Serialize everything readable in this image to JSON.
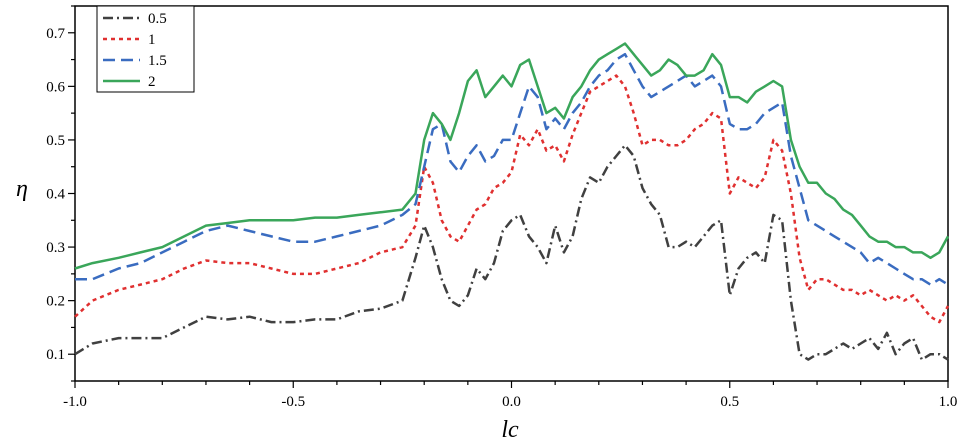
{
  "chart_data": {
    "type": "line",
    "xlabel": "lc",
    "ylabel": "η",
    "xlim": [
      -1.0,
      1.0
    ],
    "ylim": [
      0.05,
      0.75
    ],
    "x_ticks": [
      -1.0,
      -0.5,
      0.0,
      0.5,
      1.0
    ],
    "x_tick_labels": [
      "-1.0",
      "-0.5",
      "0.0",
      "0.5",
      "1.0"
    ],
    "y_ticks": [
      0.1,
      0.2,
      0.3,
      0.4,
      0.5,
      0.6,
      0.7
    ],
    "y_tick_labels": [
      "0.1",
      "0.2",
      "0.3",
      "0.4",
      "0.5",
      "0.6",
      "0.7"
    ],
    "grid": false,
    "legend_position": "top-left",
    "series": [
      {
        "name": "0.5",
        "color": "#404040",
        "dash": "dash-dot",
        "x": [
          -1.0,
          -0.96,
          -0.9,
          -0.85,
          -0.8,
          -0.75,
          -0.7,
          -0.65,
          -0.6,
          -0.55,
          -0.5,
          -0.45,
          -0.4,
          -0.35,
          -0.3,
          -0.25,
          -0.22,
          -0.2,
          -0.18,
          -0.16,
          -0.14,
          -0.12,
          -0.1,
          -0.08,
          -0.06,
          -0.04,
          -0.02,
          0.0,
          0.02,
          0.04,
          0.06,
          0.08,
          0.1,
          0.12,
          0.14,
          0.16,
          0.18,
          0.2,
          0.22,
          0.24,
          0.26,
          0.28,
          0.3,
          0.32,
          0.34,
          0.36,
          0.38,
          0.4,
          0.42,
          0.44,
          0.46,
          0.48,
          0.5,
          0.52,
          0.54,
          0.56,
          0.58,
          0.6,
          0.62,
          0.64,
          0.66,
          0.68,
          0.7,
          0.72,
          0.74,
          0.76,
          0.78,
          0.8,
          0.82,
          0.84,
          0.86,
          0.88,
          0.9,
          0.92,
          0.94,
          0.96,
          0.98,
          1.0
        ],
        "values": [
          0.1,
          0.12,
          0.13,
          0.13,
          0.13,
          0.15,
          0.17,
          0.165,
          0.17,
          0.16,
          0.16,
          0.165,
          0.165,
          0.18,
          0.185,
          0.2,
          0.28,
          0.34,
          0.3,
          0.24,
          0.2,
          0.19,
          0.21,
          0.26,
          0.24,
          0.27,
          0.33,
          0.35,
          0.36,
          0.32,
          0.3,
          0.27,
          0.34,
          0.29,
          0.32,
          0.39,
          0.43,
          0.42,
          0.45,
          0.47,
          0.49,
          0.47,
          0.41,
          0.38,
          0.36,
          0.3,
          0.3,
          0.31,
          0.3,
          0.32,
          0.34,
          0.35,
          0.21,
          0.26,
          0.28,
          0.29,
          0.27,
          0.36,
          0.35,
          0.2,
          0.1,
          0.09,
          0.1,
          0.1,
          0.11,
          0.12,
          0.11,
          0.12,
          0.13,
          0.11,
          0.14,
          0.1,
          0.12,
          0.13,
          0.09,
          0.1,
          0.1,
          0.09
        ]
      },
      {
        "name": "1",
        "color": "#e03030",
        "dash": "dotted",
        "x": [
          -1.0,
          -0.96,
          -0.9,
          -0.85,
          -0.8,
          -0.75,
          -0.7,
          -0.65,
          -0.6,
          -0.55,
          -0.5,
          -0.45,
          -0.4,
          -0.35,
          -0.3,
          -0.25,
          -0.22,
          -0.2,
          -0.18,
          -0.16,
          -0.14,
          -0.12,
          -0.1,
          -0.08,
          -0.06,
          -0.04,
          -0.02,
          0.0,
          0.02,
          0.04,
          0.06,
          0.08,
          0.1,
          0.12,
          0.14,
          0.16,
          0.18,
          0.2,
          0.22,
          0.24,
          0.26,
          0.28,
          0.3,
          0.32,
          0.34,
          0.36,
          0.38,
          0.4,
          0.42,
          0.44,
          0.46,
          0.48,
          0.5,
          0.52,
          0.54,
          0.56,
          0.58,
          0.6,
          0.62,
          0.64,
          0.66,
          0.68,
          0.7,
          0.72,
          0.74,
          0.76,
          0.78,
          0.8,
          0.82,
          0.84,
          0.86,
          0.88,
          0.9,
          0.92,
          0.94,
          0.96,
          0.98,
          1.0
        ],
        "values": [
          0.17,
          0.2,
          0.22,
          0.23,
          0.24,
          0.26,
          0.275,
          0.27,
          0.27,
          0.26,
          0.25,
          0.25,
          0.26,
          0.27,
          0.29,
          0.3,
          0.34,
          0.45,
          0.42,
          0.35,
          0.32,
          0.31,
          0.34,
          0.37,
          0.38,
          0.41,
          0.42,
          0.44,
          0.51,
          0.49,
          0.52,
          0.48,
          0.49,
          0.46,
          0.51,
          0.55,
          0.59,
          0.6,
          0.61,
          0.62,
          0.6,
          0.55,
          0.49,
          0.5,
          0.5,
          0.49,
          0.49,
          0.5,
          0.52,
          0.53,
          0.55,
          0.54,
          0.4,
          0.43,
          0.42,
          0.41,
          0.43,
          0.5,
          0.48,
          0.4,
          0.28,
          0.22,
          0.24,
          0.24,
          0.23,
          0.22,
          0.22,
          0.21,
          0.22,
          0.21,
          0.2,
          0.21,
          0.2,
          0.21,
          0.19,
          0.17,
          0.16,
          0.19
        ]
      },
      {
        "name": "1.5",
        "color": "#3a6cc0",
        "dash": "dashed",
        "x": [
          -1.0,
          -0.96,
          -0.9,
          -0.85,
          -0.8,
          -0.75,
          -0.7,
          -0.65,
          -0.6,
          -0.55,
          -0.5,
          -0.45,
          -0.4,
          -0.35,
          -0.3,
          -0.25,
          -0.22,
          -0.2,
          -0.18,
          -0.16,
          -0.14,
          -0.12,
          -0.1,
          -0.08,
          -0.06,
          -0.04,
          -0.02,
          0.0,
          0.02,
          0.04,
          0.06,
          0.08,
          0.1,
          0.12,
          0.14,
          0.16,
          0.18,
          0.2,
          0.22,
          0.24,
          0.26,
          0.28,
          0.3,
          0.32,
          0.34,
          0.36,
          0.38,
          0.4,
          0.42,
          0.44,
          0.46,
          0.48,
          0.5,
          0.52,
          0.54,
          0.56,
          0.58,
          0.6,
          0.62,
          0.64,
          0.66,
          0.68,
          0.7,
          0.72,
          0.74,
          0.76,
          0.78,
          0.8,
          0.82,
          0.84,
          0.86,
          0.88,
          0.9,
          0.92,
          0.94,
          0.96,
          0.98,
          1.0
        ],
        "values": [
          0.24,
          0.24,
          0.26,
          0.27,
          0.29,
          0.31,
          0.33,
          0.34,
          0.33,
          0.32,
          0.31,
          0.31,
          0.32,
          0.33,
          0.34,
          0.36,
          0.38,
          0.45,
          0.52,
          0.53,
          0.46,
          0.44,
          0.47,
          0.49,
          0.46,
          0.47,
          0.5,
          0.5,
          0.55,
          0.6,
          0.58,
          0.52,
          0.54,
          0.52,
          0.55,
          0.57,
          0.6,
          0.62,
          0.63,
          0.65,
          0.66,
          0.63,
          0.6,
          0.58,
          0.59,
          0.6,
          0.61,
          0.62,
          0.6,
          0.61,
          0.62,
          0.6,
          0.53,
          0.52,
          0.52,
          0.53,
          0.55,
          0.56,
          0.57,
          0.47,
          0.41,
          0.35,
          0.34,
          0.33,
          0.32,
          0.31,
          0.3,
          0.29,
          0.27,
          0.28,
          0.27,
          0.26,
          0.25,
          0.24,
          0.24,
          0.23,
          0.24,
          0.23
        ]
      },
      {
        "name": "2",
        "color": "#3aa65a",
        "dash": "solid",
        "x": [
          -1.0,
          -0.96,
          -0.9,
          -0.85,
          -0.8,
          -0.75,
          -0.7,
          -0.65,
          -0.6,
          -0.55,
          -0.5,
          -0.45,
          -0.4,
          -0.35,
          -0.3,
          -0.25,
          -0.22,
          -0.2,
          -0.18,
          -0.16,
          -0.14,
          -0.12,
          -0.1,
          -0.08,
          -0.06,
          -0.04,
          -0.02,
          0.0,
          0.02,
          0.04,
          0.06,
          0.08,
          0.1,
          0.12,
          0.14,
          0.16,
          0.18,
          0.2,
          0.22,
          0.24,
          0.26,
          0.28,
          0.3,
          0.32,
          0.34,
          0.36,
          0.38,
          0.4,
          0.42,
          0.44,
          0.46,
          0.48,
          0.5,
          0.52,
          0.54,
          0.56,
          0.58,
          0.6,
          0.62,
          0.64,
          0.66,
          0.68,
          0.7,
          0.72,
          0.74,
          0.76,
          0.78,
          0.8,
          0.82,
          0.84,
          0.86,
          0.88,
          0.9,
          0.92,
          0.94,
          0.96,
          0.98,
          1.0
        ],
        "values": [
          0.26,
          0.27,
          0.28,
          0.29,
          0.3,
          0.32,
          0.34,
          0.345,
          0.35,
          0.35,
          0.35,
          0.355,
          0.355,
          0.36,
          0.365,
          0.37,
          0.4,
          0.5,
          0.55,
          0.53,
          0.5,
          0.55,
          0.61,
          0.63,
          0.58,
          0.6,
          0.62,
          0.6,
          0.64,
          0.65,
          0.6,
          0.55,
          0.56,
          0.54,
          0.58,
          0.6,
          0.63,
          0.65,
          0.66,
          0.67,
          0.68,
          0.66,
          0.64,
          0.62,
          0.63,
          0.65,
          0.64,
          0.62,
          0.62,
          0.63,
          0.66,
          0.64,
          0.58,
          0.58,
          0.57,
          0.59,
          0.6,
          0.61,
          0.6,
          0.5,
          0.45,
          0.42,
          0.42,
          0.4,
          0.39,
          0.37,
          0.36,
          0.34,
          0.32,
          0.31,
          0.31,
          0.3,
          0.3,
          0.29,
          0.29,
          0.28,
          0.29,
          0.32
        ]
      }
    ]
  }
}
